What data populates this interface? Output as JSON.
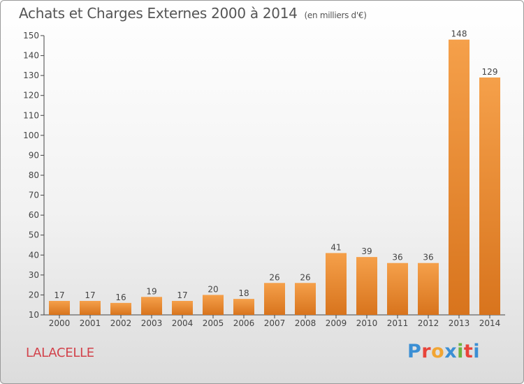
{
  "title": "Achats et Charges Externes 2000 à 2014",
  "subtitle": "(en milliers d'€)",
  "commune": "LALACELLE",
  "logo": {
    "letters": [
      "P",
      "r",
      "o",
      "x",
      "i",
      "t",
      "i"
    ],
    "colors": [
      "#3b8fd4",
      "#e8443a",
      "#f2a533",
      "#3b8fd4",
      "#6cb33f",
      "#e8443a",
      "#3b8fd4"
    ]
  },
  "colors": {
    "bar_top": "#f5a04a",
    "bar_bottom": "#d8741d",
    "axis": "#444444"
  },
  "chart_data": {
    "type": "bar",
    "title": "Achats et Charges Externes 2000 à 2014",
    "subtitle": "(en milliers d'€)",
    "categories": [
      "2000",
      "2001",
      "2002",
      "2003",
      "2004",
      "2005",
      "2006",
      "2007",
      "2008",
      "2009",
      "2010",
      "2011",
      "2012",
      "2013",
      "2014"
    ],
    "values": [
      17,
      17,
      16,
      19,
      17,
      20,
      18,
      26,
      26,
      41,
      39,
      36,
      36,
      148,
      129
    ],
    "ylim": [
      10,
      150
    ],
    "yticks": [
      10,
      20,
      30,
      40,
      50,
      60,
      70,
      80,
      90,
      100,
      110,
      120,
      130,
      140,
      150
    ],
    "xlabel": "",
    "ylabel": "",
    "grid": false,
    "data_labels": true
  }
}
